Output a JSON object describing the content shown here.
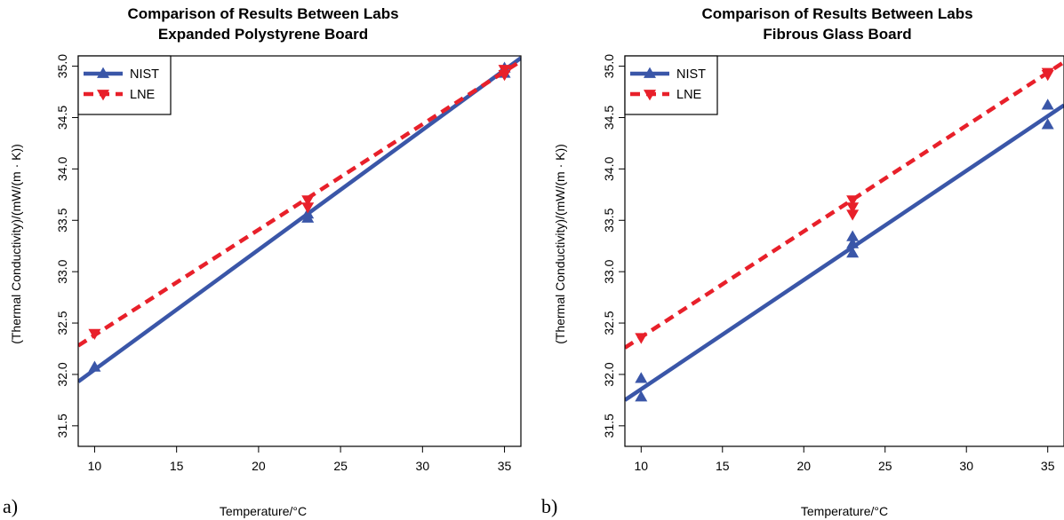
{
  "colors": {
    "nist": "#3a56a8",
    "lne": "#e8202a",
    "axis": "#000000"
  },
  "chart_data": [
    {
      "type": "line",
      "panel_label": "a)",
      "title": "Comparison of Results Between Labs",
      "subtitle": "Expanded Polystyrene Board",
      "xlabel": "Temperature/°C",
      "ylabel": "(Thermal Conductivity)/(mW/(m · K))",
      "xlim": [
        9,
        36
      ],
      "ylim": [
        31.3,
        35.1
      ],
      "xticks": [
        "10",
        "15",
        "20",
        "25",
        "30",
        "35"
      ],
      "yticks": [
        "31.5",
        "32.0",
        "32.5",
        "33.0",
        "33.5",
        "34.0",
        "34.5",
        "35.0"
      ],
      "legend_position": "top-left",
      "series": [
        {
          "name": "NIST",
          "marker": "triangle-up",
          "line_style": "solid",
          "color": "#3a56a8",
          "points": [
            [
              10,
              32.07
            ],
            [
              23,
              33.52
            ],
            [
              23,
              33.56
            ],
            [
              35,
              34.98
            ],
            [
              35,
              34.93
            ]
          ],
          "fit": [
            [
              9,
              31.93
            ],
            [
              36,
              35.08
            ]
          ]
        },
        {
          "name": "LNE",
          "marker": "triangle-down",
          "line_style": "dashed",
          "color": "#e8202a",
          "points": [
            [
              10,
              32.4
            ],
            [
              23,
              33.7
            ],
            [
              23,
              33.63
            ],
            [
              35,
              34.97
            ],
            [
              35,
              34.92
            ]
          ],
          "fit": [
            [
              9,
              32.28
            ],
            [
              36,
              35.05
            ]
          ]
        }
      ]
    },
    {
      "type": "line",
      "panel_label": "b)",
      "title": "Comparison of Results Between Labs",
      "subtitle": "Fibrous Glass Board",
      "xlabel": "Temperature/°C",
      "ylabel": "(Thermal Conductivity)/(mW/(m · K))",
      "xlim": [
        9,
        36
      ],
      "ylim": [
        31.3,
        35.1
      ],
      "xticks": [
        "10",
        "15",
        "20",
        "25",
        "30",
        "35"
      ],
      "yticks": [
        "31.5",
        "32.0",
        "32.5",
        "33.0",
        "33.5",
        "34.0",
        "34.5",
        "35.0"
      ],
      "legend_position": "top-left",
      "series": [
        {
          "name": "NIST",
          "marker": "triangle-up",
          "line_style": "solid",
          "color": "#3a56a8",
          "points": [
            [
              10,
              31.96
            ],
            [
              10,
              31.78
            ],
            [
              23,
              33.34
            ],
            [
              23,
              33.27
            ],
            [
              23,
              33.18
            ],
            [
              35,
              34.62
            ],
            [
              35,
              34.43
            ]
          ],
          "fit": [
            [
              9,
              31.75
            ],
            [
              36,
              34.62
            ]
          ]
        },
        {
          "name": "LNE",
          "marker": "triangle-down",
          "line_style": "dashed",
          "color": "#e8202a",
          "points": [
            [
              10,
              32.36
            ],
            [
              23,
              33.7
            ],
            [
              23,
              33.63
            ],
            [
              23,
              33.56
            ],
            [
              35,
              34.94
            ],
            [
              35,
              34.92
            ]
          ],
          "fit": [
            [
              9,
              32.26
            ],
            [
              36,
              35.04
            ]
          ]
        }
      ]
    }
  ]
}
